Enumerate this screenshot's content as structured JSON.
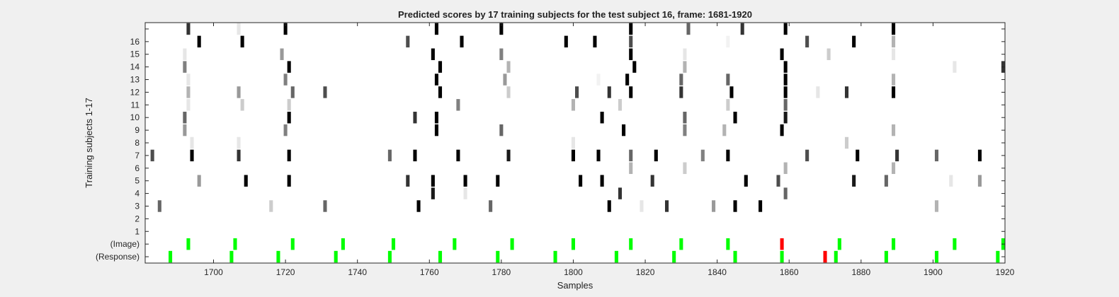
{
  "chart_data": {
    "type": "heatmap",
    "title": "Predicted scores by 17 training subjects for the test subject 16, frame: 1681-1920",
    "xlabel": "Samples",
    "ylabel": "Training subjects 1-17",
    "xlim": [
      1681,
      1920
    ],
    "x_ticks": [
      1700,
      1720,
      1740,
      1760,
      1780,
      1800,
      1820,
      1840,
      1860,
      1880,
      1900,
      1920
    ],
    "row_labels": [
      "(Response)",
      "(Image)",
      "1",
      "2",
      "3",
      "4",
      "5",
      "6",
      "7",
      "8",
      "9",
      "10",
      "11",
      "12",
      "13",
      "14",
      "15",
      "16",
      ""
    ],
    "grid": false,
    "colormap": "gray (white = 0, black = 1)",
    "colors": {
      "correct_marker": "#00ff00",
      "error_marker": "#ff0000",
      "background": "#ffffff",
      "figure_bg": "#f0f0f0"
    },
    "marker_rows": {
      "response": {
        "green": [
          1688,
          1705,
          1718,
          1734,
          1749,
          1763,
          1779,
          1795,
          1812,
          1828,
          1845,
          1858,
          1873,
          1887,
          1901,
          1918
        ],
        "red": [
          1870
        ]
      },
      "image": {
        "green": [
          1693,
          1706,
          1722,
          1736,
          1750,
          1767,
          1783,
          1800,
          1816,
          1830,
          1843,
          1874,
          1889,
          1906,
          1920
        ],
        "red": [
          1858
        ]
      }
    },
    "score_rows": [
      {
        "row": "1",
        "cells": []
      },
      {
        "row": "2",
        "cells": []
      },
      {
        "row": "3",
        "cells": [
          [
            1685,
            0.6
          ],
          [
            1716,
            0.2
          ],
          [
            1731,
            0.6
          ],
          [
            1757,
            1.0
          ],
          [
            1777,
            0.6
          ],
          [
            1810,
            1.0
          ],
          [
            1819,
            0.1
          ],
          [
            1826,
            0.8
          ],
          [
            1839,
            0.4
          ],
          [
            1845,
            1.0
          ],
          [
            1852,
            1.0
          ],
          [
            1901,
            0.3
          ]
        ]
      },
      {
        "row": "4",
        "cells": [
          [
            1761,
            0.9
          ],
          [
            1770,
            0.1
          ],
          [
            1813,
            0.8
          ],
          [
            1859,
            0.6
          ]
        ]
      },
      {
        "row": "5",
        "cells": [
          [
            1696,
            0.4
          ],
          [
            1709,
            1.0
          ],
          [
            1721,
            1.0
          ],
          [
            1754,
            0.8
          ],
          [
            1761,
            1.0
          ],
          [
            1770,
            1.0
          ],
          [
            1779,
            1.0
          ],
          [
            1802,
            1.0
          ],
          [
            1808,
            1.0
          ],
          [
            1822,
            0.8
          ],
          [
            1848,
            1.0
          ],
          [
            1857,
            0.7
          ],
          [
            1878,
            0.9
          ],
          [
            1887,
            0.6
          ],
          [
            1905,
            0.1
          ],
          [
            1913,
            0.4
          ]
        ]
      },
      {
        "row": "6",
        "cells": [
          [
            1816,
            0.3
          ],
          [
            1831,
            0.2
          ],
          [
            1859,
            0.3
          ],
          [
            1889,
            0.3
          ]
        ]
      },
      {
        "row": "7",
        "cells": [
          [
            1683,
            0.7
          ],
          [
            1694,
            1.0
          ],
          [
            1707,
            0.8
          ],
          [
            1721,
            1.0
          ],
          [
            1749,
            0.6
          ],
          [
            1756,
            1.0
          ],
          [
            1768,
            1.0
          ],
          [
            1782,
            0.9
          ],
          [
            1800,
            1.0
          ],
          [
            1807,
            1.0
          ],
          [
            1816,
            0.6
          ],
          [
            1823,
            1.0
          ],
          [
            1836,
            0.5
          ],
          [
            1843,
            1.0
          ],
          [
            1865,
            0.7
          ],
          [
            1879,
            1.0
          ],
          [
            1890,
            0.8
          ],
          [
            1901,
            0.6
          ],
          [
            1913,
            1.0
          ]
        ]
      },
      {
        "row": "8",
        "cells": [
          [
            1694,
            0.1
          ],
          [
            1707,
            0.1
          ],
          [
            1800,
            0.1
          ],
          [
            1876,
            0.2
          ]
        ]
      },
      {
        "row": "9",
        "cells": [
          [
            1692,
            0.4
          ],
          [
            1720,
            0.5
          ],
          [
            1762,
            1.0
          ],
          [
            1780,
            0.6
          ],
          [
            1814,
            1.0
          ],
          [
            1831,
            0.5
          ],
          [
            1842,
            0.3
          ],
          [
            1858,
            1.0
          ],
          [
            1889,
            0.3
          ]
        ]
      },
      {
        "row": "10",
        "cells": [
          [
            1692,
            0.6
          ],
          [
            1721,
            1.0
          ],
          [
            1756,
            0.8
          ],
          [
            1762,
            1.0
          ],
          [
            1808,
            1.0
          ],
          [
            1831,
            0.6
          ],
          [
            1845,
            1.0
          ],
          [
            1859,
            0.9
          ]
        ]
      },
      {
        "row": "11",
        "cells": [
          [
            1693,
            0.1
          ],
          [
            1708,
            0.2
          ],
          [
            1721,
            0.2
          ],
          [
            1768,
            0.5
          ],
          [
            1800,
            0.3
          ],
          [
            1813,
            0.2
          ],
          [
            1843,
            0.2
          ],
          [
            1859,
            0.6
          ]
        ]
      },
      {
        "row": "12",
        "cells": [
          [
            1693,
            0.3
          ],
          [
            1707,
            0.4
          ],
          [
            1722,
            0.6
          ],
          [
            1731,
            0.7
          ],
          [
            1763,
            1.0
          ],
          [
            1782,
            0.2
          ],
          [
            1801,
            0.7
          ],
          [
            1810,
            0.8
          ],
          [
            1816,
            1.0
          ],
          [
            1830,
            0.8
          ],
          [
            1844,
            1.0
          ],
          [
            1859,
            1.0
          ],
          [
            1868,
            0.1
          ],
          [
            1876,
            0.8
          ],
          [
            1889,
            1.0
          ]
        ]
      },
      {
        "row": "13",
        "cells": [
          [
            1693,
            0.1
          ],
          [
            1720,
            0.5
          ],
          [
            1762,
            1.0
          ],
          [
            1781,
            0.4
          ],
          [
            1807,
            0.05
          ],
          [
            1815,
            1.0
          ],
          [
            1830,
            0.6
          ],
          [
            1843,
            0.6
          ],
          [
            1859,
            1.0
          ],
          [
            1889,
            0.3
          ]
        ]
      },
      {
        "row": "14",
        "cells": [
          [
            1692,
            0.5
          ],
          [
            1721,
            1.0
          ],
          [
            1763,
            1.0
          ],
          [
            1782,
            0.3
          ],
          [
            1817,
            1.0
          ],
          [
            1831,
            0.3
          ],
          [
            1859,
            1.0
          ],
          [
            1906,
            0.1
          ],
          [
            1920,
            0.8
          ]
        ]
      },
      {
        "row": "15",
        "cells": [
          [
            1692,
            0.1
          ],
          [
            1719,
            0.4
          ],
          [
            1761,
            1.0
          ],
          [
            1780,
            0.5
          ],
          [
            1816,
            1.0
          ],
          [
            1831,
            0.1
          ],
          [
            1858,
            1.0
          ],
          [
            1871,
            0.2
          ],
          [
            1889,
            0.1
          ]
        ]
      },
      {
        "row": "16",
        "cells": [
          [
            1696,
            1.0
          ],
          [
            1708,
            1.0
          ],
          [
            1754,
            0.7
          ],
          [
            1769,
            1.0
          ],
          [
            1798,
            1.0
          ],
          [
            1806,
            1.0
          ],
          [
            1816,
            0.7
          ],
          [
            1843,
            0.05
          ],
          [
            1865,
            0.7
          ],
          [
            1878,
            1.0
          ],
          [
            1889,
            0.3
          ]
        ]
      },
      {
        "row": "",
        "cells": [
          [
            1693,
            0.8
          ],
          [
            1707,
            0.1
          ],
          [
            1720,
            1.0
          ],
          [
            1762,
            1.0
          ],
          [
            1780,
            1.0
          ],
          [
            1816,
            1.0
          ],
          [
            1832,
            0.6
          ],
          [
            1847,
            0.8
          ],
          [
            1859,
            1.0
          ],
          [
            1889,
            1.0
          ]
        ]
      }
    ]
  }
}
